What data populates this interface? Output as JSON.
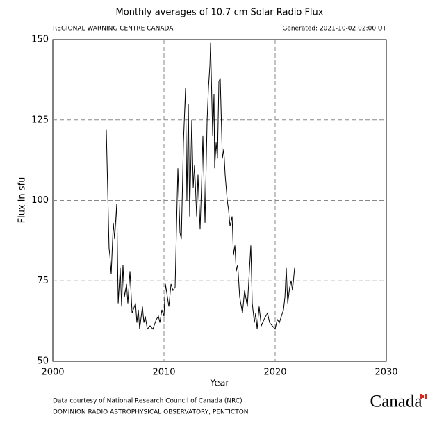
{
  "chart_data": {
    "type": "line",
    "title": "Monthly averages of 10.7 cm Solar Radio Flux",
    "subtitle_left": "REGIONAL WARNING CENTRE CANADA",
    "subtitle_right": "Generated: 2021-10-02 02:00 UT",
    "xlabel": "Year",
    "ylabel": "Flux in sfu",
    "footer": [
      "Data courtesy of National Research Council of Canada (NRC)",
      "DOMINION RADIO ASTROPHYSICAL OBSERVATORY, PENTICTON"
    ],
    "logo": "Canada",
    "color": "#000000",
    "grid": true,
    "xlim": [
      2000,
      2030
    ],
    "xticks": [
      2000,
      2010,
      2020,
      2030
    ],
    "ylim": [
      50,
      150
    ],
    "yticks": [
      50,
      75,
      100,
      125,
      150
    ],
    "x": [
      2004.81,
      2005.06,
      2005.13,
      2005.25,
      2005.44,
      2005.56,
      2005.75,
      2005.88,
      2006.06,
      2006.19,
      2006.31,
      2006.44,
      2006.63,
      2006.75,
      2006.94,
      2007.13,
      2007.44,
      2007.56,
      2007.69,
      2007.81,
      2008.06,
      2008.19,
      2008.31,
      2008.5,
      2008.75,
      2009.0,
      2009.31,
      2009.5,
      2009.63,
      2009.81,
      2010.0,
      2010.13,
      2010.44,
      2010.63,
      2010.81,
      2011.0,
      2011.25,
      2011.44,
      2011.56,
      2011.75,
      2011.94,
      2012.06,
      2012.19,
      2012.31,
      2012.5,
      2012.63,
      2012.75,
      2012.94,
      2013.06,
      2013.25,
      2013.38,
      2013.5,
      2013.69,
      2013.88,
      2014.0,
      2014.13,
      2014.19,
      2014.38,
      2014.5,
      2014.56,
      2014.69,
      2014.81,
      2014.94,
      2015.06,
      2015.25,
      2015.38,
      2015.5,
      2015.69,
      2015.81,
      2015.94,
      2016.13,
      2016.25,
      2016.38,
      2016.5,
      2016.63,
      2016.81,
      2017.06,
      2017.25,
      2017.5,
      2017.81,
      2017.94,
      2018.13,
      2018.25,
      2018.38,
      2018.56,
      2018.75,
      2019.0,
      2019.31,
      2019.5,
      2019.75,
      2020.0,
      2020.19,
      2020.38,
      2020.56,
      2020.75,
      2020.88,
      2021.0,
      2021.13,
      2021.31,
      2021.44,
      2021.56,
      2021.75
    ],
    "y": [
      122,
      85,
      83,
      77,
      93,
      88,
      99,
      68,
      79,
      67,
      80,
      70,
      74,
      68,
      78,
      65,
      68,
      62,
      66,
      60,
      67,
      62,
      64,
      60,
      61,
      60,
      63,
      64,
      62,
      66,
      64,
      74,
      67,
      74,
      72,
      73,
      110,
      90,
      88,
      118,
      135,
      100,
      130,
      95,
      125,
      104,
      111,
      95,
      108,
      91,
      105,
      120,
      93,
      125,
      135,
      142,
      149,
      120,
      133,
      110,
      118,
      113,
      137,
      138,
      113,
      116,
      108,
      100,
      97,
      92,
      95,
      83,
      86,
      78,
      80,
      70,
      65,
      72,
      67,
      86,
      68,
      62,
      65,
      60,
      67,
      61,
      63,
      65,
      62,
      61,
      60,
      63,
      62,
      64,
      66,
      70,
      79,
      68,
      73,
      75,
      72,
      79
    ]
  }
}
